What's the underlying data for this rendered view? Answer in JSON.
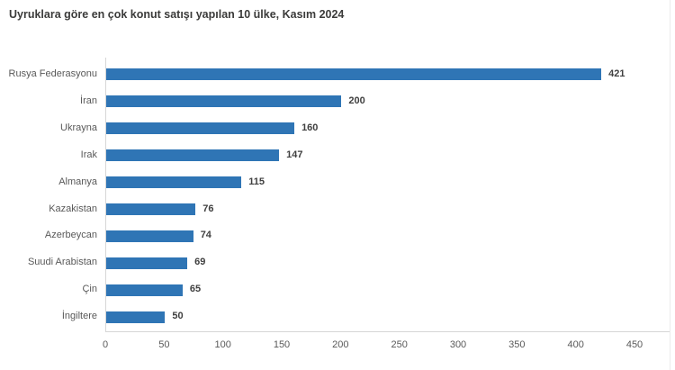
{
  "page": {
    "background": "#ffffff",
    "right_border_color": "#ececeb"
  },
  "chart_data": {
    "type": "bar",
    "orientation": "horizontal",
    "title": "Uyruklara göre en çok konut satışı yapılan 10 ülke, Kasım 2024",
    "categories": [
      "Rusya Federasyonu",
      "İran",
      "Ukrayna",
      "Irak",
      "Almanya",
      "Kazakistan",
      "Azerbeycan",
      "Suudi Arabistan",
      "Çin",
      "İngiltere"
    ],
    "values": [
      421,
      200,
      160,
      147,
      115,
      76,
      74,
      69,
      65,
      50
    ],
    "xlabel": "",
    "ylabel": "",
    "xlim": [
      0,
      450
    ],
    "xticks": [
      0,
      50,
      100,
      150,
      200,
      250,
      300,
      350,
      400,
      450
    ],
    "grid": false,
    "legend": false,
    "data_labels": true,
    "bar_color": "#2f75b5",
    "title_color": "#3b3b3a",
    "value_label_color": "#404040",
    "category_label_color": "#595959",
    "tick_label_color": "#595959",
    "axis_line_color": "#d6d6d6"
  }
}
